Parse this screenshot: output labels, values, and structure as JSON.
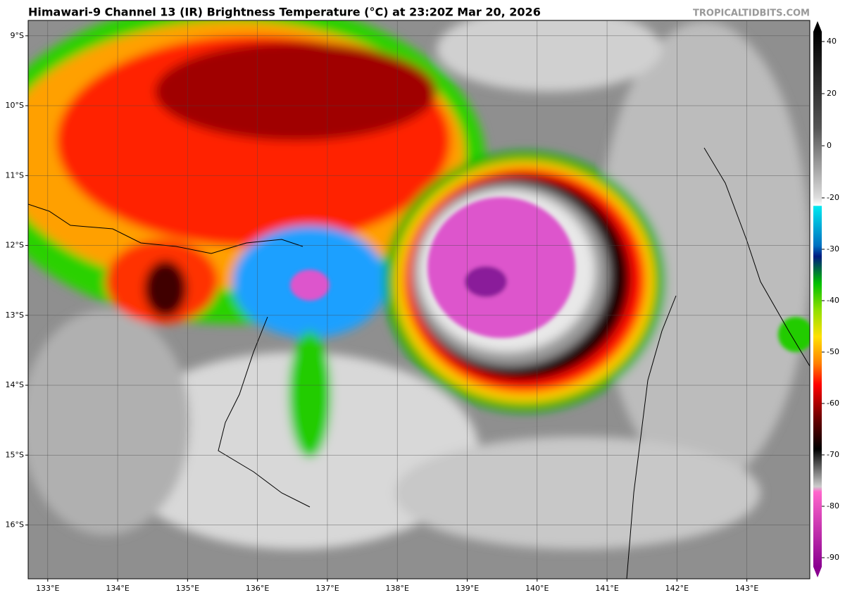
{
  "title": "Himawari-9 Channel 13 (IR) Brightness Temperature (°C) at 23:20Z Mar 20, 2026",
  "source": "TROPICALTIDBITS.COM",
  "map": {
    "xlim": [
      132.72,
      143.9
    ],
    "ylim": [
      -8.78,
      -16.77
    ],
    "xticks": [
      {
        "value": 133,
        "label": "133°E"
      },
      {
        "value": 134,
        "label": "134°E"
      },
      {
        "value": 135,
        "label": "135°E"
      },
      {
        "value": 136,
        "label": "136°E"
      },
      {
        "value": 137,
        "label": "137°E"
      },
      {
        "value": 138,
        "label": "138°E"
      },
      {
        "value": 139,
        "label": "139°E"
      },
      {
        "value": 140,
        "label": "140°E"
      },
      {
        "value": 141,
        "label": "141°E"
      },
      {
        "value": 142,
        "label": "142°E"
      },
      {
        "value": 143,
        "label": "143°E"
      }
    ],
    "yticks": [
      {
        "value": -9,
        "label": "9°S"
      },
      {
        "value": -10,
        "label": "10°S"
      },
      {
        "value": -11,
        "label": "11°S"
      },
      {
        "value": -12,
        "label": "12°S"
      },
      {
        "value": -13,
        "label": "13°S"
      },
      {
        "value": -14,
        "label": "14°S"
      },
      {
        "value": -15,
        "label": "15°S"
      },
      {
        "value": -16,
        "label": "16°S"
      }
    ]
  },
  "colorbar": {
    "lim": [
      -90,
      40
    ],
    "ticks": [
      40,
      20,
      0,
      -20,
      -30,
      -40,
      -50,
      -60,
      -70,
      -80,
      -90
    ]
  }
}
